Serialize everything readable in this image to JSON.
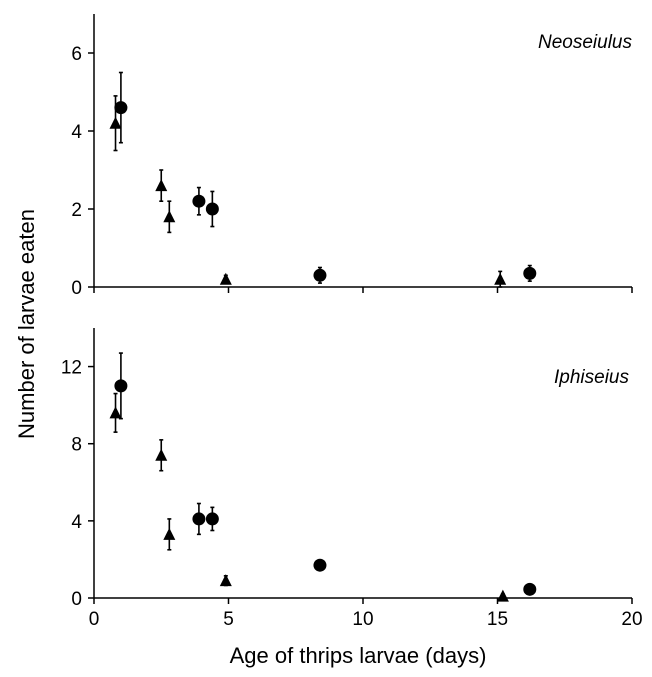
{
  "chart_data": [
    {
      "type": "scatter",
      "title": "Neoseiulus",
      "xlabel": "Age of thrips larvae (days)",
      "ylabel": "Number of larvae eaten",
      "xlim": [
        0,
        20
      ],
      "ylim": [
        0,
        7
      ],
      "yticks": [
        "0",
        "2",
        "4",
        "6"
      ],
      "xticks": [
        0,
        5,
        10,
        15,
        20
      ],
      "series": [
        {
          "marker": "triangle",
          "points": [
            {
              "x": 0.8,
              "y": 4.2,
              "err": 0.7
            },
            {
              "x": 2.5,
              "y": 2.6,
              "err": 0.4
            },
            {
              "x": 2.8,
              "y": 1.8,
              "err": 0.4
            },
            {
              "x": 4.9,
              "y": 0.2,
              "err": 0.1
            },
            {
              "x": 15.1,
              "y": 0.2,
              "err": 0.2
            }
          ]
        },
        {
          "marker": "circle",
          "points": [
            {
              "x": 1.0,
              "y": 4.6,
              "err": 0.9
            },
            {
              "x": 3.9,
              "y": 2.2,
              "err": 0.35
            },
            {
              "x": 4.4,
              "y": 2.0,
              "err": 0.45
            },
            {
              "x": 8.4,
              "y": 0.3,
              "err": 0.2
            },
            {
              "x": 16.2,
              "y": 0.35,
              "err": 0.2
            }
          ]
        }
      ]
    },
    {
      "type": "scatter",
      "title": "Iphiseius",
      "xlabel": "Age of thrips larvae (days)",
      "ylabel": "Number of larvae eaten",
      "xlim": [
        0,
        20
      ],
      "ylim": [
        0,
        14
      ],
      "yticks": [
        "0",
        "4",
        "8",
        "12"
      ],
      "xticks": [
        "0",
        "5",
        "10",
        "15",
        "20"
      ],
      "series": [
        {
          "marker": "triangle",
          "points": [
            {
              "x": 0.8,
              "y": 9.6,
              "err": 1.0
            },
            {
              "x": 2.5,
              "y": 7.4,
              "err": 0.8
            },
            {
              "x": 2.8,
              "y": 3.3,
              "err": 0.8
            },
            {
              "x": 4.9,
              "y": 0.9,
              "err": 0.25
            },
            {
              "x": 15.2,
              "y": 0.1,
              "err": 0.1
            }
          ]
        },
        {
          "marker": "circle",
          "points": [
            {
              "x": 1.0,
              "y": 11.0,
              "err": 1.7
            },
            {
              "x": 3.9,
              "y": 4.1,
              "err": 0.8
            },
            {
              "x": 4.4,
              "y": 4.1,
              "err": 0.6
            },
            {
              "x": 8.4,
              "y": 1.7,
              "err": 0.0
            },
            {
              "x": 16.2,
              "y": 0.45,
              "err": 0.0
            }
          ]
        }
      ]
    }
  ]
}
